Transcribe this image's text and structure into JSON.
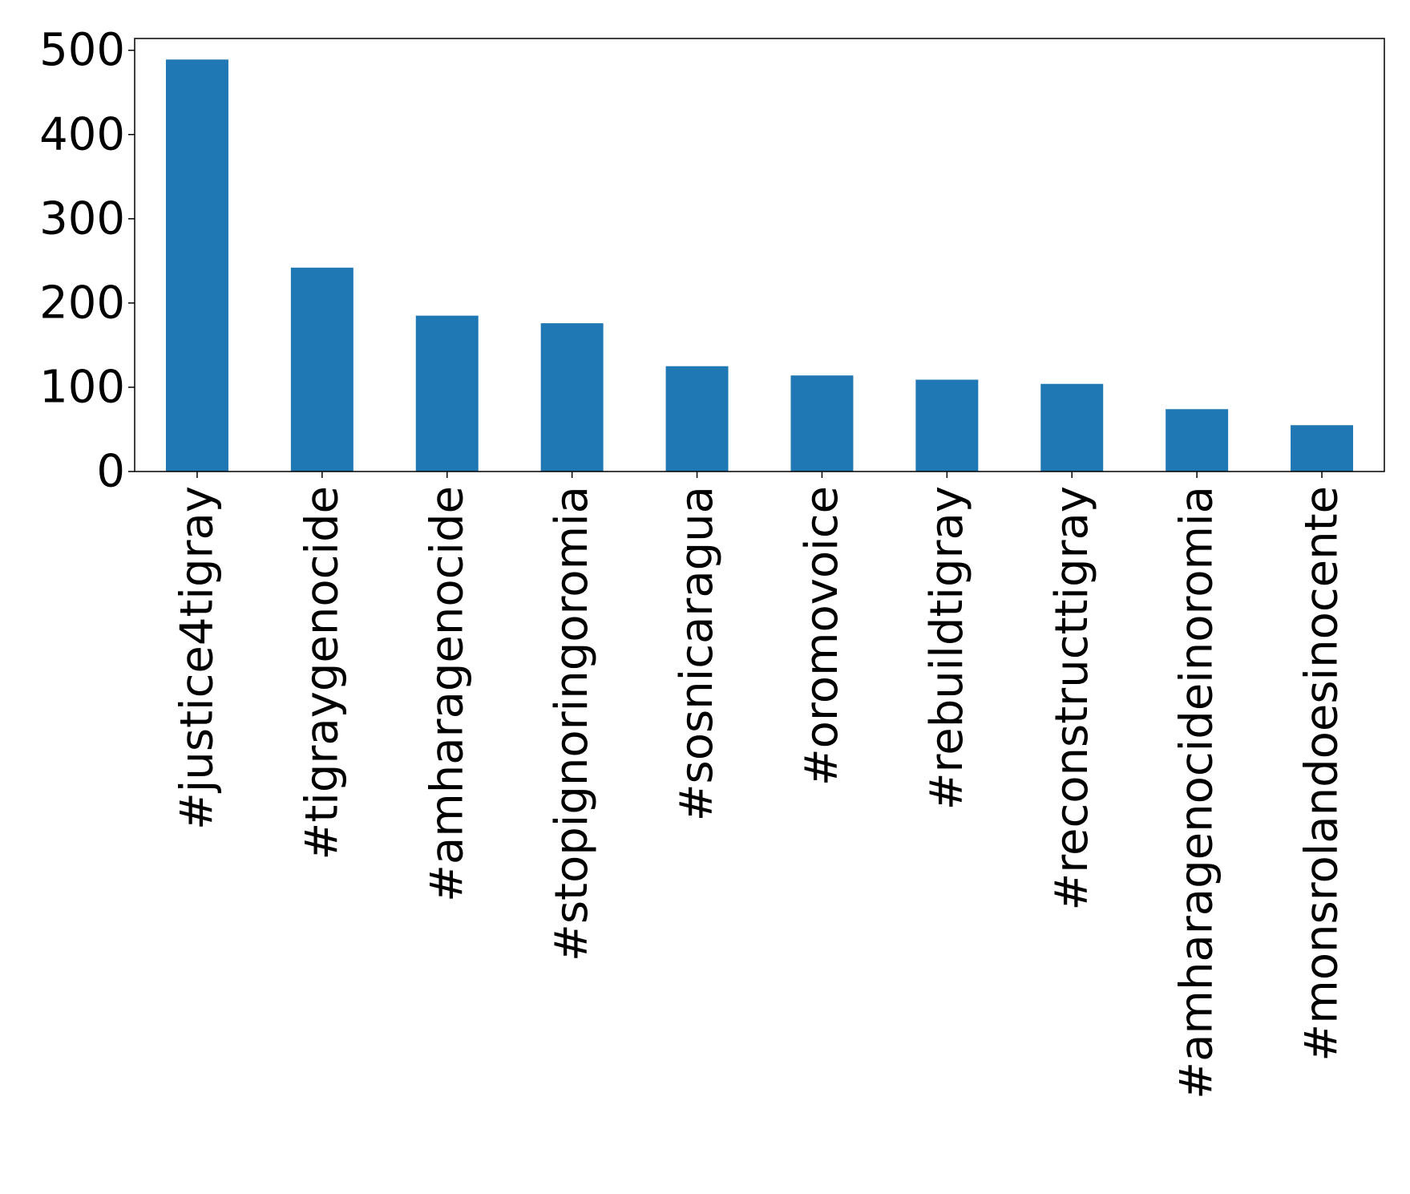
{
  "chart_data": {
    "type": "bar",
    "title": "",
    "xlabel": "",
    "ylabel": "",
    "categories": [
      "#justice4tigray",
      "#tigraygenocide",
      "#amharagenocide",
      "#stopignoringoromia",
      "#sosnicaragua",
      "#oromovoice",
      "#rebuildtigray",
      "#reconstructtigray",
      "#amharagenocideinoromia",
      "#monsrolandoesinocente"
    ],
    "values": [
      489,
      242,
      185,
      176,
      125,
      114,
      109,
      104,
      74,
      55
    ],
    "yticks": [
      0,
      100,
      200,
      300,
      400,
      500
    ],
    "ylim": [
      0,
      514
    ],
    "grid": false,
    "legend": "none",
    "bar_color": "#1f77b4"
  }
}
